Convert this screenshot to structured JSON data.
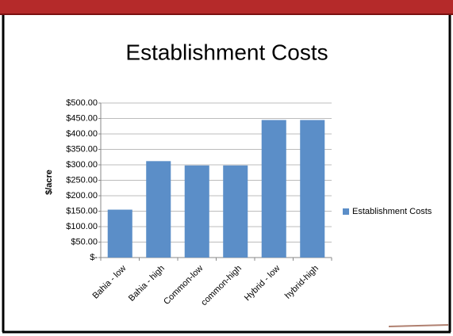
{
  "chart_data": {
    "type": "bar",
    "title": "Establishment Costs",
    "y_label": "$/acre",
    "categories": [
      "Bahia - low",
      "Bahia - high",
      "Common-low",
      "common-high",
      "Hybrid - low",
      "hybrid-high"
    ],
    "series": [
      {
        "name": "Establishment Costs",
        "color": "#5b8ec8",
        "values": [
          155,
          312,
          298,
          298,
          445,
          445
        ]
      }
    ],
    "ylim": [
      0,
      500
    ],
    "yticks": [
      {
        "value": 0,
        "label": "$-"
      },
      {
        "value": 50,
        "label": "$50.00"
      },
      {
        "value": 100,
        "label": "$100.00"
      },
      {
        "value": 150,
        "label": "$150.00"
      },
      {
        "value": 200,
        "label": "$200.00"
      },
      {
        "value": 250,
        "label": "$250.00"
      },
      {
        "value": 300,
        "label": "$300.00"
      },
      {
        "value": 350,
        "label": "$350.00"
      },
      {
        "value": 400,
        "label": "$400.00"
      },
      {
        "value": 450,
        "label": "$450.00"
      },
      {
        "value": 500,
        "label": "$500.00"
      }
    ],
    "grid": true,
    "legend": "right"
  }
}
